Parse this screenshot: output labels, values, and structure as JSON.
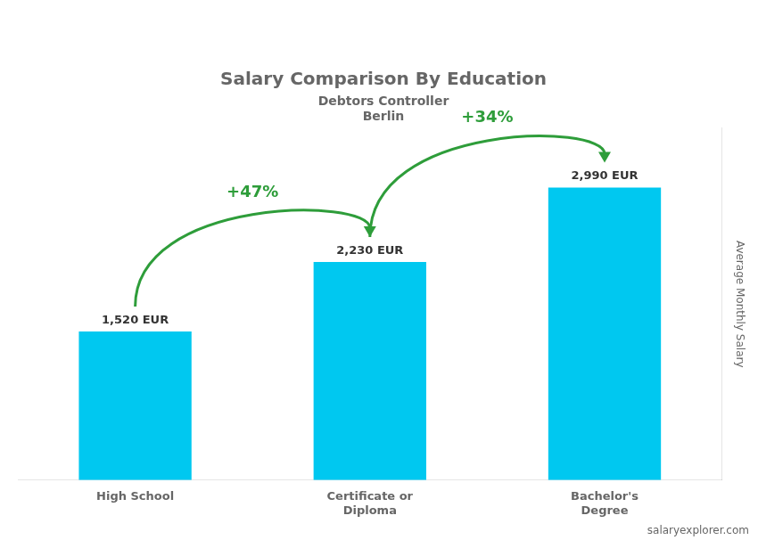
{
  "chart_data": {
    "type": "bar",
    "title": "Salary Comparison By Education",
    "subtitle": [
      "Debtors Controller",
      "Berlin"
    ],
    "ylabel": "Average Monthly Salary",
    "categories": [
      "High School",
      "Certificate or\nDiploma",
      "Bachelor's\nDegree"
    ],
    "values": [
      1520,
      2230,
      2990
    ],
    "value_labels": [
      "1,520 EUR",
      "2,230 EUR",
      "2,990 EUR"
    ],
    "data_labels": true,
    "color": "#00c8f0",
    "ylim": [
      0,
      3600
    ],
    "tick_labels": "x",
    "grid": false,
    "annotations": [
      {
        "text": "+47%",
        "from": "High School",
        "to": "Certificate or\nDiploma"
      },
      {
        "text": "+34%",
        "from": "Certificate or\nDiploma",
        "to": "Bachelor's\nDegree"
      },
      {
        "text": "salaryexplorer.com"
      }
    ]
  }
}
